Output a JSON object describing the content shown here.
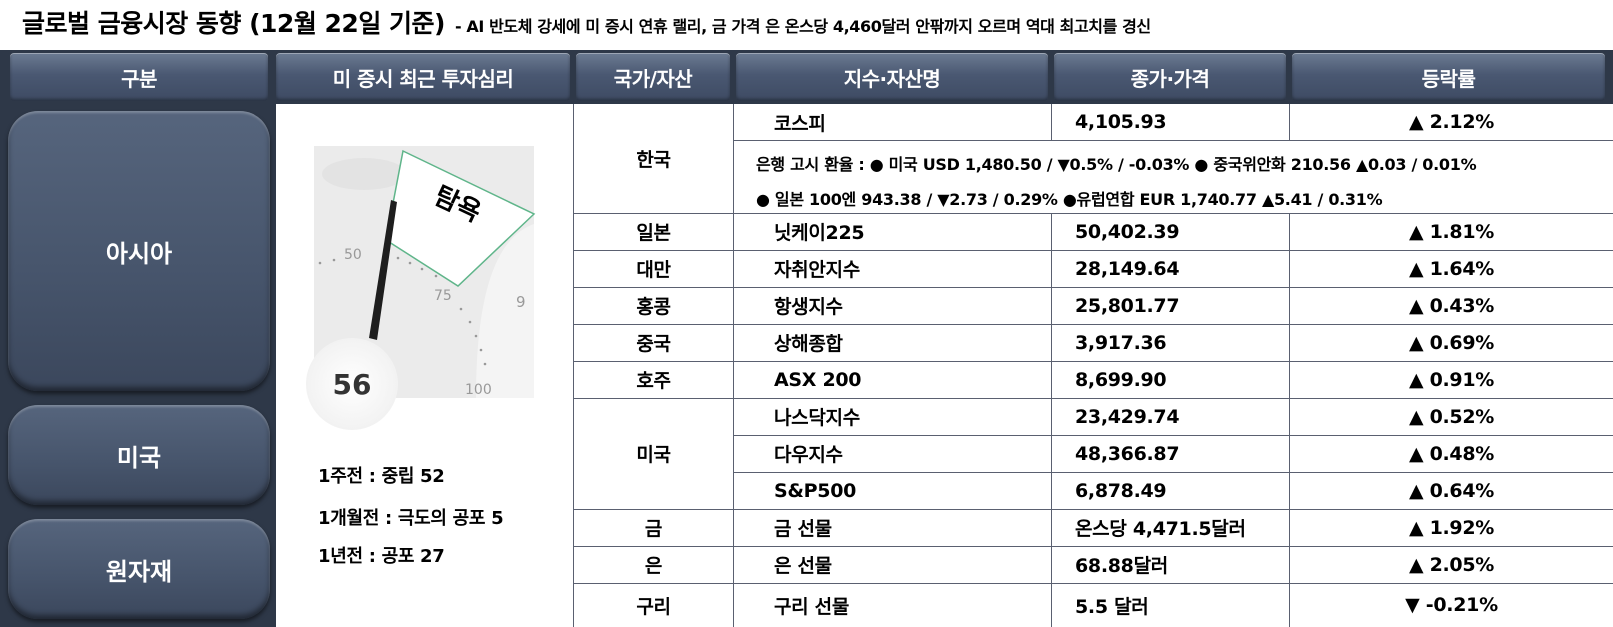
{
  "title": {
    "main": "글로벌 금융시장 동향 (12월 22일 기준)",
    "sub": "- AI 반도체 강세에 미 증시 연휴 랠리, 금 가격 은 온스당 4,460달러 안팎까지 오르며 역대 최고치를 경신"
  },
  "headers": [
    "구분",
    "미 증시 최근 투자심리",
    "국가/자산",
    "지수·자산명",
    "종가·가격",
    "등락률"
  ],
  "regions": [
    "아시아",
    "미국",
    "원자재"
  ],
  "sentiment": {
    "gauge_value": 56,
    "zone_label": "탐욕",
    "ticks": [
      "50",
      "75",
      "100",
      "9"
    ],
    "history": [
      "1주전 : 중립 52",
      "1개월전 : 극도의 공포 5",
      "1년전 : 공포 27"
    ]
  },
  "countries": [
    "한국",
    "일본",
    "대만",
    "홍콩",
    "중국",
    "호주",
    "미국",
    "금",
    "은",
    "구리"
  ],
  "rows": [
    {
      "name": "코스피",
      "price": "4,105.93",
      "change": "▲ 2.12%"
    },
    {
      "name": "닛케이225",
      "price": "50,402.39",
      "change": "▲ 1.81%"
    },
    {
      "name": "자취안지수",
      "price": "28,149.64",
      "change": "▲ 1.64%"
    },
    {
      "name": "항생지수",
      "price": "25,801.77",
      "change": "▲ 0.43%"
    },
    {
      "name": "상해종합",
      "price": "3,917.36",
      "change": "▲ 0.69%"
    },
    {
      "name": "ASX 200",
      "price": "8,699.90",
      "change": "▲ 0.91%"
    },
    {
      "name": "나스닥지수",
      "price": "23,429.74",
      "change": "▲ 0.52%"
    },
    {
      "name": "다우지수",
      "price": "48,366.87",
      "change": "▲ 0.48%"
    },
    {
      "name": "S&P500",
      "price": "6,878.49",
      "change": "▲ 0.64%"
    },
    {
      "name": "금 선물",
      "price": "온스당 4,471.5달러",
      "change": "▲ 1.92%"
    },
    {
      "name": "은 선물",
      "price": "68.88달러",
      "change": "▲ 2.05%"
    },
    {
      "name": "구리 선물",
      "price": "5.5 달러",
      "change": "▼ -0.21%"
    }
  ],
  "fx": {
    "line1": "은행 고시 환율 : ● 미국 USD 1,480.50 / ▼0.5% / -0.03%  ● 중국위안화 210.56 ▲0.03 / 0.01%",
    "line2": "● 일본 100엔 943.38  / ▼2.73 / 0.29%  ●유럽연합 EUR 1,740.77 ▲5.41 / 0.31%"
  }
}
